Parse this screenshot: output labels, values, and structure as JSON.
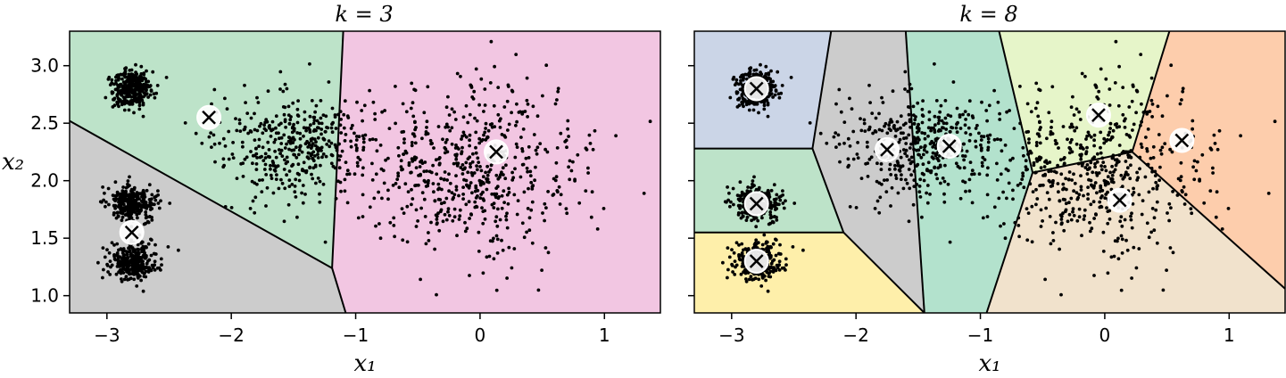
{
  "chart_data": [
    {
      "type": "scatter",
      "title": "k = 3",
      "xlabel": "x₁",
      "ylabel": "x₂",
      "xlim": [
        -3.3,
        1.45
      ],
      "ylim": [
        0.85,
        3.3
      ],
      "xticks": [
        -3,
        -2,
        -1,
        0,
        1
      ],
      "xtick_labels": [
        "−3",
        "−2",
        "−1",
        "0",
        "1"
      ],
      "yticks": [
        1.0,
        1.5,
        2.0,
        2.5,
        3.0
      ],
      "ytick_labels": [
        "1.0",
        "1.5",
        "2.0",
        "2.5",
        "3.0"
      ],
      "show_ytick_labels": true,
      "grid": false,
      "centroids": [
        {
          "x": -2.18,
          "y": 2.55
        },
        {
          "x": 0.13,
          "y": 2.25
        },
        {
          "x": -2.8,
          "y": 1.55
        }
      ],
      "regions": [
        {
          "color": "#bde3c9",
          "polygon": [
            [
              -3.3,
              3.3
            ],
            [
              -1.1,
              3.3
            ],
            [
              -1.19,
              1.24
            ],
            [
              -3.3,
              2.52
            ]
          ]
        },
        {
          "color": "#f2c6e2",
          "polygon": [
            [
              -1.1,
              3.3
            ],
            [
              1.45,
              3.3
            ],
            [
              1.45,
              0.85
            ],
            [
              -1.08,
              0.85
            ],
            [
              -1.19,
              1.24
            ]
          ]
        },
        {
          "color": "#cccccc",
          "polygon": [
            [
              -3.3,
              2.52
            ],
            [
              -1.19,
              1.24
            ],
            [
              -1.08,
              0.85
            ],
            [
              -3.3,
              0.85
            ]
          ]
        }
      ],
      "boundaries": [
        [
          [
            -3.3,
            2.52
          ],
          [
            -1.19,
            1.24
          ],
          [
            -1.1,
            3.3
          ]
        ],
        [
          [
            -1.19,
            1.24
          ],
          [
            -1.08,
            0.85
          ]
        ]
      ]
    },
    {
      "type": "scatter",
      "title": "k = 8",
      "xlabel": "x₁",
      "ylabel": "",
      "xlim": [
        -3.3,
        1.45
      ],
      "ylim": [
        0.85,
        3.3
      ],
      "xticks": [
        -3,
        -2,
        -1,
        0,
        1
      ],
      "xtick_labels": [
        "−3",
        "−2",
        "−1",
        "0",
        "1"
      ],
      "yticks": [
        1.0,
        1.5,
        2.0,
        2.5,
        3.0
      ],
      "ytick_labels": [
        "1.0",
        "1.5",
        "2.0",
        "2.5",
        "3.0"
      ],
      "show_ytick_labels": false,
      "grid": false,
      "centroids": [
        {
          "x": -2.8,
          "y": 2.8
        },
        {
          "x": -2.8,
          "y": 1.8
        },
        {
          "x": -2.8,
          "y": 1.3
        },
        {
          "x": -1.75,
          "y": 2.27
        },
        {
          "x": -1.25,
          "y": 2.3
        },
        {
          "x": -0.05,
          "y": 2.57
        },
        {
          "x": 0.62,
          "y": 2.35
        },
        {
          "x": 0.12,
          "y": 1.83
        }
      ],
      "regions": [
        {
          "color": "#cbd5e7",
          "polygon": [
            [
              -3.3,
              3.3
            ],
            [
              -2.2,
              3.3
            ],
            [
              -2.35,
              2.28
            ],
            [
              -3.3,
              2.28
            ]
          ]
        },
        {
          "color": "#bde3c9",
          "polygon": [
            [
              -3.3,
              2.28
            ],
            [
              -2.35,
              2.28
            ],
            [
              -2.1,
              1.55
            ],
            [
              -3.3,
              1.55
            ]
          ]
        },
        {
          "color": "#feefaa",
          "polygon": [
            [
              -3.3,
              1.55
            ],
            [
              -2.1,
              1.55
            ],
            [
              -1.45,
              0.85
            ],
            [
              -3.3,
              0.85
            ]
          ]
        },
        {
          "color": "#cccccc",
          "polygon": [
            [
              -2.2,
              3.3
            ],
            [
              -1.6,
              3.3
            ],
            [
              -1.45,
              0.85
            ],
            [
              -2.1,
              1.55
            ],
            [
              -2.35,
              2.28
            ]
          ]
        },
        {
          "color": "#b3e2cd",
          "polygon": [
            [
              -1.6,
              3.3
            ],
            [
              -0.85,
              3.3
            ],
            [
              -0.58,
              2.07
            ],
            [
              -0.95,
              0.85
            ],
            [
              -1.45,
              0.85
            ]
          ]
        },
        {
          "color": "#e6f5c9",
          "polygon": [
            [
              -0.85,
              3.3
            ],
            [
              0.52,
              3.3
            ],
            [
              0.22,
              2.25
            ],
            [
              -0.58,
              2.07
            ]
          ]
        },
        {
          "color": "#fdcdac",
          "polygon": [
            [
              0.52,
              3.3
            ],
            [
              1.45,
              3.3
            ],
            [
              1.45,
              1.06
            ],
            [
              0.22,
              2.25
            ]
          ]
        },
        {
          "color": "#f1e2cc",
          "polygon": [
            [
              -0.58,
              2.07
            ],
            [
              0.22,
              2.25
            ],
            [
              1.45,
              1.06
            ],
            [
              1.45,
              0.85
            ],
            [
              -0.95,
              0.85
            ]
          ]
        }
      ],
      "boundaries": [
        [
          [
            -3.3,
            2.28
          ],
          [
            -2.35,
            2.28
          ],
          [
            -2.2,
            3.3
          ]
        ],
        [
          [
            -2.35,
            2.28
          ],
          [
            -2.1,
            1.55
          ],
          [
            -1.45,
            0.85
          ]
        ],
        [
          [
            -3.3,
            1.55
          ],
          [
            -2.1,
            1.55
          ]
        ],
        [
          [
            -1.6,
            3.3
          ],
          [
            -1.45,
            0.85
          ]
        ],
        [
          [
            -0.85,
            3.3
          ],
          [
            -0.58,
            2.07
          ],
          [
            -0.95,
            0.85
          ]
        ],
        [
          [
            -0.58,
            2.07
          ],
          [
            0.22,
            2.25
          ],
          [
            0.52,
            3.3
          ]
        ],
        [
          [
            0.22,
            2.25
          ],
          [
            1.45,
            1.06
          ]
        ]
      ]
    }
  ],
  "clusters": [
    {
      "cx": -2.8,
      "cy": 2.8,
      "sx": 0.08,
      "sy": 0.09,
      "n": 300
    },
    {
      "cx": -2.8,
      "cy": 1.8,
      "sx": 0.1,
      "sy": 0.08,
      "n": 300
    },
    {
      "cx": -2.8,
      "cy": 1.3,
      "sx": 0.1,
      "sy": 0.08,
      "n": 300
    },
    {
      "cx": -1.5,
      "cy": 2.3,
      "sx": 0.3,
      "sy": 0.22,
      "n": 400
    },
    {
      "cx": -0.1,
      "cy": 2.1,
      "sx": 0.45,
      "sy": 0.38,
      "n": 600
    }
  ]
}
